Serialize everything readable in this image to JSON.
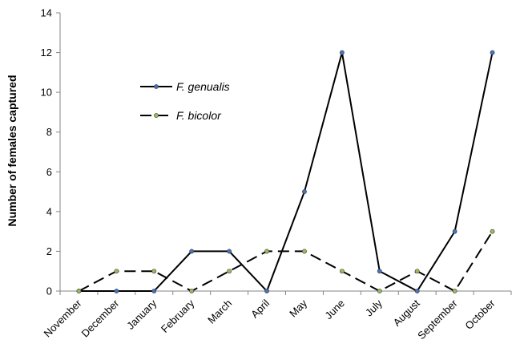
{
  "chart_data": {
    "type": "line",
    "title": "",
    "xlabel": "",
    "ylabel": "Number of females captured",
    "categories": [
      "November",
      "December",
      "January",
      "February",
      "March",
      "April",
      "May",
      "June",
      "July",
      "August",
      "September",
      "October"
    ],
    "ylim": [
      0,
      14
    ],
    "yticks": [
      0,
      2,
      4,
      6,
      8,
      10,
      12,
      14
    ],
    "grid": false,
    "legend_position": "upper-left",
    "series": [
      {
        "name": "F. genualis",
        "line_style": "solid",
        "line_color": "#000000",
        "marker_color": "#4472C4",
        "values": [
          0,
          0,
          0,
          2,
          2,
          0,
          5,
          12,
          1,
          0,
          3,
          12
        ]
      },
      {
        "name": "F. bicolor",
        "line_style": "dashed",
        "line_color": "#000000",
        "marker_color": "#9BBB59",
        "values": [
          0,
          1,
          1,
          0,
          1,
          2,
          2,
          1,
          0,
          1,
          0,
          3
        ]
      }
    ]
  }
}
